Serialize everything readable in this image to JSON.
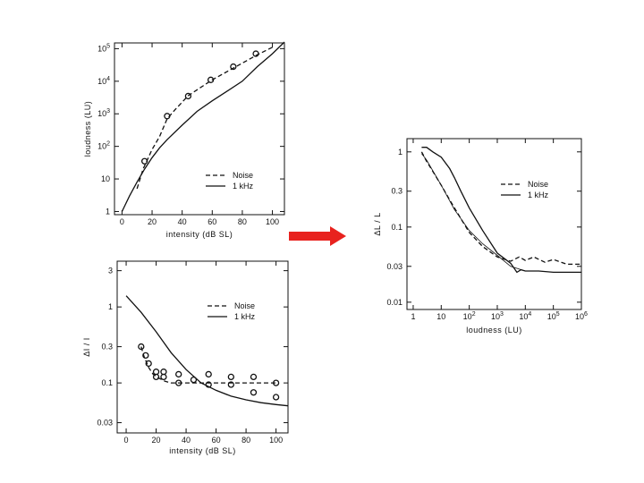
{
  "colors": {
    "ink": "#111111",
    "arrow": "#e8221e",
    "background": "#ffffff"
  },
  "chart_data": [
    {
      "type": "line",
      "title": "",
      "xlabel": "intensity (dB SL)",
      "ylabel": "loudness (LU)",
      "xlim": [
        -5,
        108
      ],
      "ylim": [
        0.8,
        150000
      ],
      "yscale": "log",
      "xticks": [
        0,
        20,
        40,
        60,
        80,
        100
      ],
      "xticklabels": [
        "0",
        "20",
        "40",
        "60",
        "80",
        "100"
      ],
      "yticks": [
        1,
        10,
        100,
        1000,
        10000,
        100000
      ],
      "yticklabels": [
        "1",
        "10",
        "10^2",
        "10^3",
        "10^4",
        "10^5"
      ],
      "grid": false,
      "legend_position": "lower-right",
      "series": [
        {
          "name": "Noise",
          "style": "dashed",
          "x": [
            10,
            12,
            14,
            17,
            20,
            25,
            30,
            35,
            44,
            50,
            60,
            70,
            80,
            90,
            100
          ],
          "y": [
            5,
            10,
            20,
            40,
            80,
            200,
            700,
            1300,
            3600,
            5500,
            11000,
            20000,
            36000,
            65000,
            110000
          ]
        },
        {
          "name": "1 kHz",
          "style": "solid",
          "x": [
            0,
            5,
            10,
            15,
            20,
            25,
            30,
            40,
            50,
            60,
            70,
            80,
            90,
            100,
            108
          ],
          "y": [
            1,
            3,
            8,
            20,
            45,
            90,
            160,
            450,
            1200,
            2500,
            5000,
            10000,
            28000,
            70000,
            160000
          ]
        },
        {
          "name": "",
          "style": "markers",
          "x": [
            15,
            30,
            44,
            59,
            74,
            89
          ],
          "y": [
            35,
            850,
            3500,
            11000,
            28000,
            70000
          ]
        }
      ]
    },
    {
      "type": "line",
      "title": "",
      "xlabel": "intensity (dB SL)",
      "ylabel": "ΔI / I",
      "xlim": [
        -6,
        108
      ],
      "ylim": [
        0.022,
        4
      ],
      "yscale": "log",
      "xticks": [
        0,
        20,
        40,
        60,
        80,
        100
      ],
      "xticklabels": [
        "0",
        "20",
        "40",
        "60",
        "80",
        "100"
      ],
      "yticks": [
        0.03,
        0.1,
        0.3,
        1,
        3
      ],
      "yticklabels": [
        "0.03",
        "0.1",
        "0.3",
        "1",
        "3"
      ],
      "grid": false,
      "legend_position": "upper-right",
      "series": [
        {
          "name": "Noise",
          "style": "dashed",
          "x": [
            10,
            12,
            15,
            18,
            22,
            26,
            30,
            40,
            50,
            60,
            70,
            80,
            90,
            100
          ],
          "y": [
            0.3,
            0.22,
            0.16,
            0.13,
            0.115,
            0.105,
            0.1,
            0.1,
            0.1,
            0.1,
            0.1,
            0.1,
            0.1,
            0.1
          ]
        },
        {
          "name": "1 kHz",
          "style": "solid",
          "x": [
            0,
            10,
            20,
            30,
            40,
            50,
            60,
            70,
            80,
            90,
            100,
            108
          ],
          "y": [
            1.4,
            0.85,
            0.47,
            0.25,
            0.15,
            0.1,
            0.08,
            0.067,
            0.06,
            0.055,
            0.052,
            0.05
          ]
        },
        {
          "name": "",
          "style": "markers",
          "x": [
            10,
            13,
            15,
            20,
            20,
            25,
            25,
            35,
            35,
            45,
            55,
            55,
            70,
            70,
            85,
            85,
            100,
            100
          ],
          "y": [
            0.3,
            0.23,
            0.18,
            0.14,
            0.12,
            0.14,
            0.12,
            0.13,
            0.1,
            0.11,
            0.13,
            0.095,
            0.12,
            0.095,
            0.12,
            0.075,
            0.1,
            0.065
          ]
        }
      ]
    },
    {
      "type": "line",
      "title": "",
      "xlabel": "loudness (LU)",
      "ylabel": "ΔL / L",
      "xlim": [
        0.6,
        1000000
      ],
      "ylim": [
        0.008,
        1.5
      ],
      "xscale": "log",
      "yscale": "log",
      "xticks": [
        1,
        10,
        100,
        1000,
        10000,
        100000,
        1000000
      ],
      "xticklabels": [
        "1",
        "10",
        "10^2",
        "10^3",
        "10^4",
        "10^5",
        "10^6"
      ],
      "yticks": [
        0.01,
        0.03,
        0.1,
        0.3,
        1
      ],
      "yticklabels": [
        "0.01",
        "0.03",
        "0.1",
        "0.3",
        "1"
      ],
      "grid": false,
      "legend_position": "upper-right",
      "series": [
        {
          "name": "Noise",
          "style": "dashed",
          "x": [
            2,
            3,
            5,
            10,
            20,
            50,
            100,
            300,
            1000,
            3000,
            6000,
            10000,
            20000,
            50000,
            100000,
            300000,
            1000000
          ],
          "y": [
            1.0,
            0.75,
            0.55,
            0.36,
            0.23,
            0.13,
            0.085,
            0.055,
            0.04,
            0.035,
            0.04,
            0.036,
            0.04,
            0.034,
            0.037,
            0.032,
            0.032
          ]
        },
        {
          "name": "1 kHz",
          "style": "solid",
          "x": [
            2,
            3,
            5,
            10,
            20,
            30,
            50,
            100,
            300,
            1000,
            3000,
            5000,
            7000,
            10000,
            30000,
            100000,
            1000000
          ],
          "y": [
            1.15,
            1.15,
            1.0,
            0.85,
            0.6,
            0.45,
            0.3,
            0.18,
            0.09,
            0.045,
            0.033,
            0.025,
            0.027,
            0.026,
            0.026,
            0.025,
            0.025
          ]
        },
        {
          "name": "",
          "style": "thin",
          "x": [
            2,
            3,
            10,
            30,
            100,
            300,
            1000,
            3000,
            10000
          ],
          "y": [
            0.95,
            0.78,
            0.36,
            0.17,
            0.09,
            0.06,
            0.042,
            0.03,
            0.026
          ]
        }
      ]
    }
  ]
}
